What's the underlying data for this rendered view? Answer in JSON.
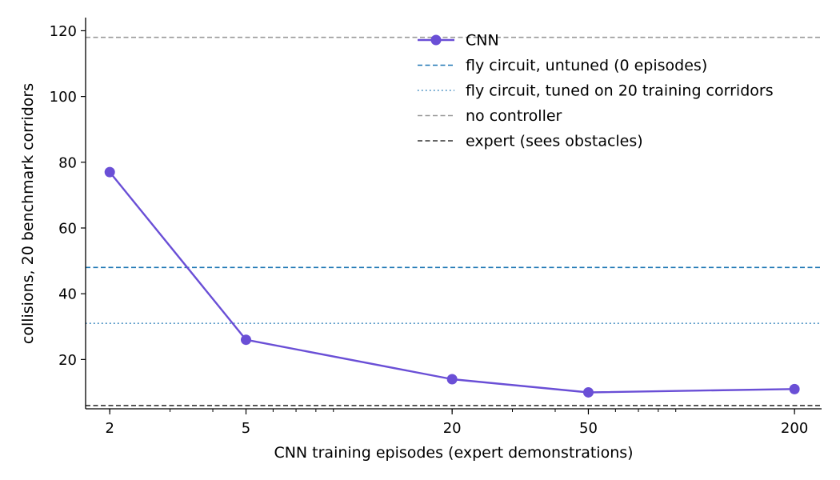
{
  "chart_data": {
    "type": "line",
    "xlabel": "CNN training episodes (expert demonstrations)",
    "ylabel": "collisions, 20 benchmark corridors",
    "xscale": "log",
    "xlim": [
      1.7,
      240
    ],
    "ylim": [
      5,
      124
    ],
    "xticks": [
      2,
      5,
      20,
      50,
      200
    ],
    "yticks": [
      20,
      40,
      60,
      80,
      100,
      120
    ],
    "grid": false,
    "legend_position": "top-right",
    "series": [
      {
        "name": "CNN",
        "color": "#6a4fd6",
        "x": [
          2,
          5,
          20,
          50,
          200
        ],
        "y": [
          77,
          26,
          14,
          10,
          11
        ]
      }
    ],
    "reference_lines": [
      {
        "name": "fly circuit, untuned (0 episodes)",
        "value": 48,
        "color": "#1f77b4",
        "style": "dashed"
      },
      {
        "name": "fly circuit, tuned on 20 training corridors",
        "value": 31,
        "color": "#1f77b4",
        "style": "dotted"
      },
      {
        "name": "no controller",
        "value": 118,
        "color": "#999999",
        "style": "dashed"
      },
      {
        "name": "expert (sees obstacles)",
        "value": 6,
        "color": "#333333",
        "style": "dashed"
      }
    ]
  }
}
